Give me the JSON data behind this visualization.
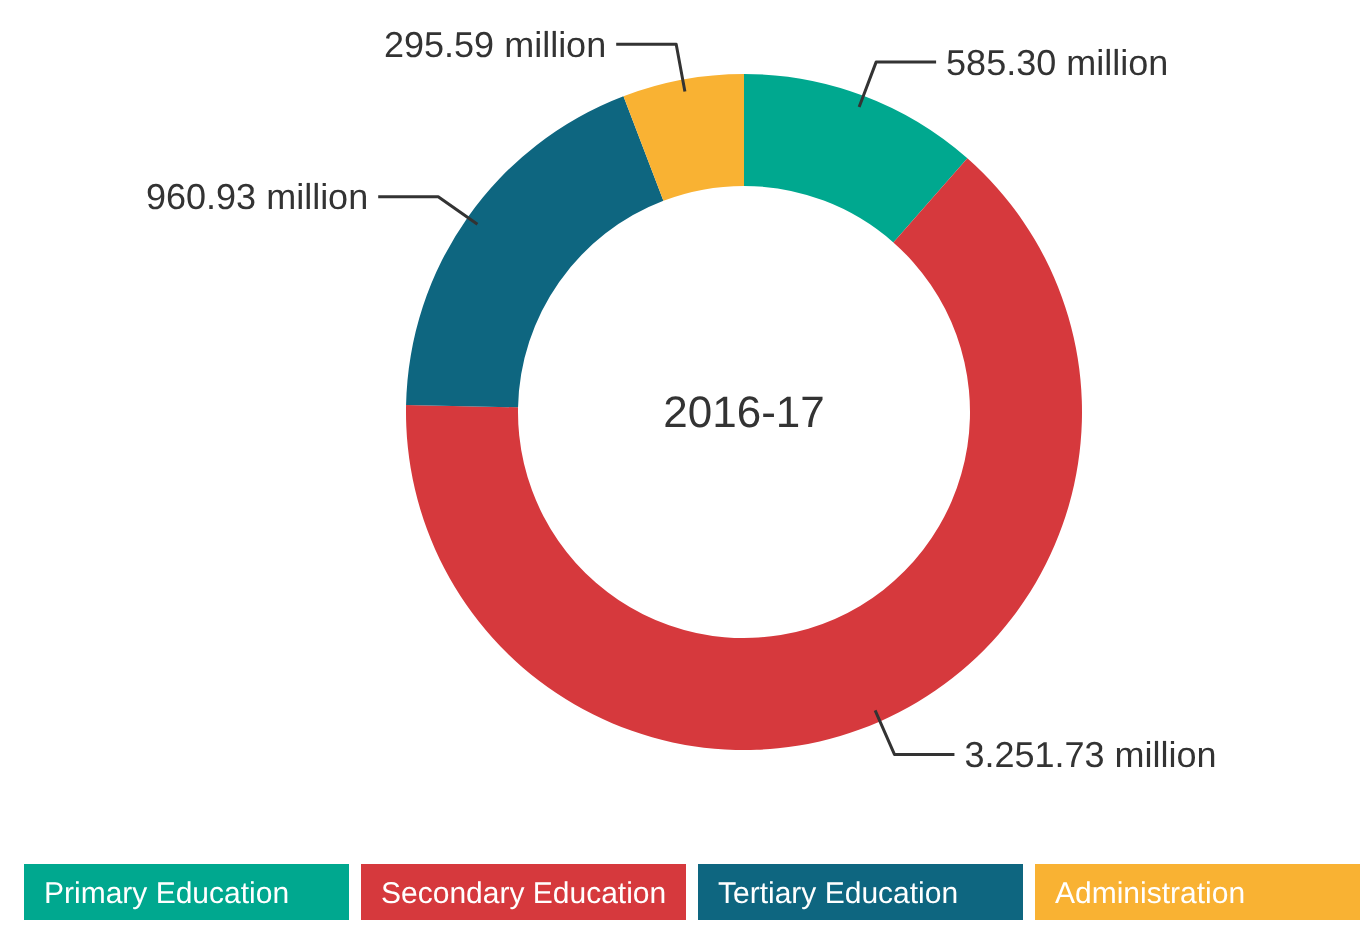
{
  "chart_data": {
    "type": "donut",
    "title": "2016-17",
    "categories": [
      "Primary Education",
      "Secondary Education",
      "Tertiary Education",
      "Administration"
    ],
    "values": [
      585.3,
      3251.73,
      960.93,
      295.59
    ],
    "value_labels": [
      "585.30 million",
      "3.251.73 million",
      "960.93 million",
      "295.59 million"
    ],
    "colors": [
      "#00a88f",
      "#d6393d",
      "#0e6680",
      "#f9b233"
    ],
    "legend": "bottom"
  }
}
